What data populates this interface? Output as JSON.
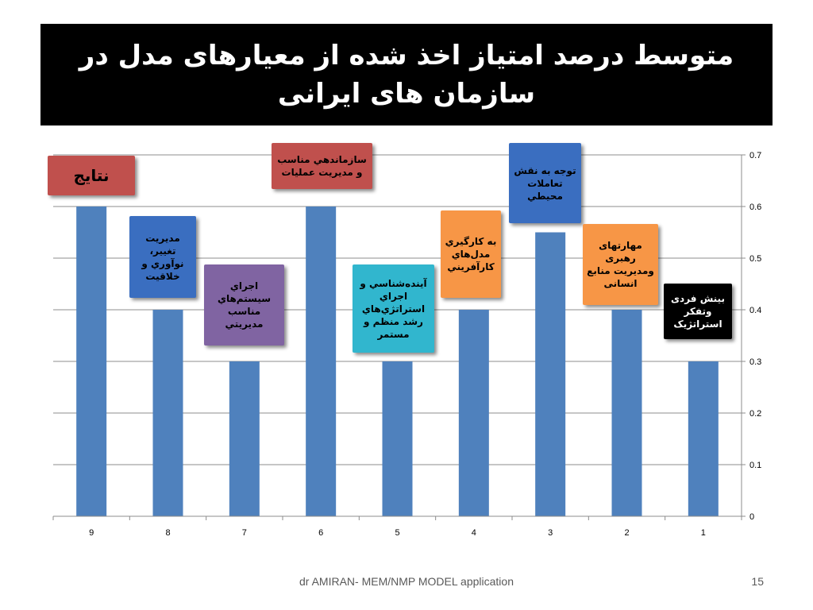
{
  "slide": {
    "title": "متوسط درصد امتیاز اخذ شده از معیارهای مدل در سازمان های ایرانی",
    "footer": "dr AMIRAN- MEM/NMP MODEL application",
    "slide_number": "15"
  },
  "chart_data": {
    "type": "bar",
    "categories": [
      "9",
      "8",
      "7",
      "6",
      "5",
      "4",
      "3",
      "2",
      "1"
    ],
    "values": [
      0.6,
      0.4,
      0.3,
      0.6,
      0.3,
      0.4,
      0.55,
      0.4,
      0.3
    ],
    "ylim": [
      0,
      0.7
    ],
    "yticks": [
      "0",
      "0.1",
      "0.2",
      "0.3",
      "0.4",
      "0.5",
      "0.6",
      "0.7"
    ],
    "y_axis_side": "right",
    "grid": true,
    "bar_color": "#4F81BD",
    "annotations": [
      {
        "category": "9",
        "text": "نتایج",
        "color": "#C0504D",
        "text_color": "#000000"
      },
      {
        "category": "8",
        "text": "مديريت تغيير، نوآوري و خلاقيت",
        "color": "#3A6EC0",
        "text_color": "#000000"
      },
      {
        "category": "7",
        "text": "اجراي سيستم‌هاي مناسب مديريتي",
        "color": "#8064A2",
        "text_color": "#000000"
      },
      {
        "category": "6",
        "text": "سازماندهي مناسب و مديريت عمليات",
        "color": "#C0504D",
        "text_color": "#000000"
      },
      {
        "category": "5",
        "text": "آيندەشناسي و اجراي استراتژي‌هاي رشد منظم و مستمر",
        "color": "#31B6CE",
        "text_color": "#000000"
      },
      {
        "category": "4",
        "text": "به كارگيري مدل‌هاي كارآفريني",
        "color": "#F79646",
        "text_color": "#000000"
      },
      {
        "category": "3",
        "text": "توجه به نقش تعاملات محيطي",
        "color": "#3A6EC0",
        "text_color": "#000000"
      },
      {
        "category": "2",
        "text": "مهارتهای رهبری ومدیریت منابع انسانی",
        "color": "#F79646",
        "text_color": "#000000"
      },
      {
        "category": "1",
        "text": "بینش فردی وتفکر استراتژیک",
        "color": "#000000",
        "text_color": "#ffffff"
      }
    ]
  }
}
